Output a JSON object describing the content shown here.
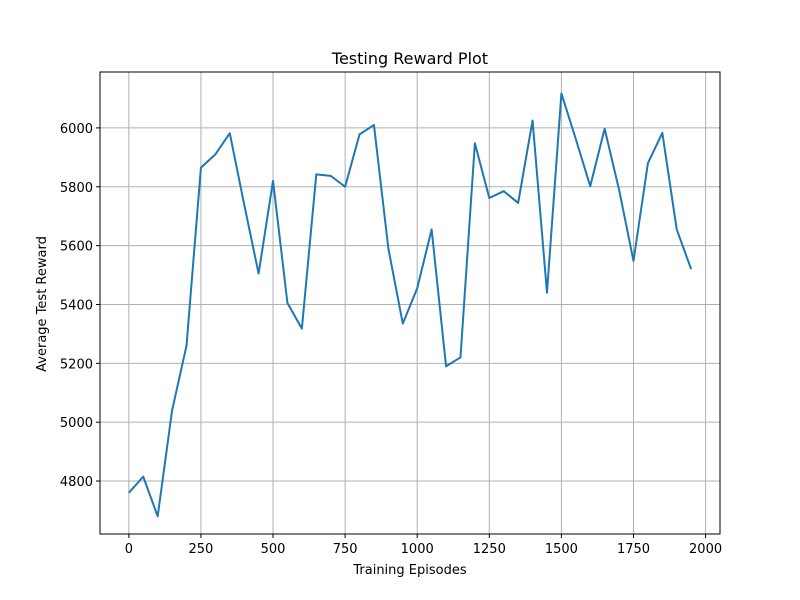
{
  "chart_data": {
    "type": "line",
    "title": "Testing Reward Plot",
    "xlabel": "Training Episodes",
    "ylabel": "Average Test Reward",
    "xlim": [
      -100,
      2050
    ],
    "ylim": [
      4620,
      6190
    ],
    "xticks": [
      0,
      250,
      500,
      750,
      1000,
      1250,
      1500,
      1750,
      2000
    ],
    "yticks": [
      4800,
      5000,
      5200,
      5400,
      5600,
      5800,
      6000
    ],
    "grid": true,
    "line_color": "#1f77b4",
    "series": [
      {
        "x": [
          0,
          50,
          100,
          150,
          200,
          250,
          300,
          350,
          400,
          450,
          500,
          550,
          600,
          650,
          700,
          750,
          800,
          850,
          900,
          950,
          1000,
          1050,
          1100,
          1150,
          1200,
          1250,
          1300,
          1350,
          1400,
          1450,
          1500,
          1550,
          1600,
          1650,
          1700,
          1750,
          1800,
          1850,
          1900,
          1950
        ],
        "values": [
          4760,
          4815,
          4680,
          5040,
          5260,
          5865,
          5910,
          5982,
          5740,
          5505,
          5820,
          5405,
          5318,
          5842,
          5837,
          5800,
          5978,
          6010,
          5590,
          5335,
          5455,
          5655,
          5190,
          5220,
          5948,
          5762,
          5785,
          5745,
          6025,
          5440,
          6117,
          5962,
          5802,
          5997,
          5790,
          5548,
          5880,
          5983,
          5655,
          5520
        ]
      }
    ]
  }
}
